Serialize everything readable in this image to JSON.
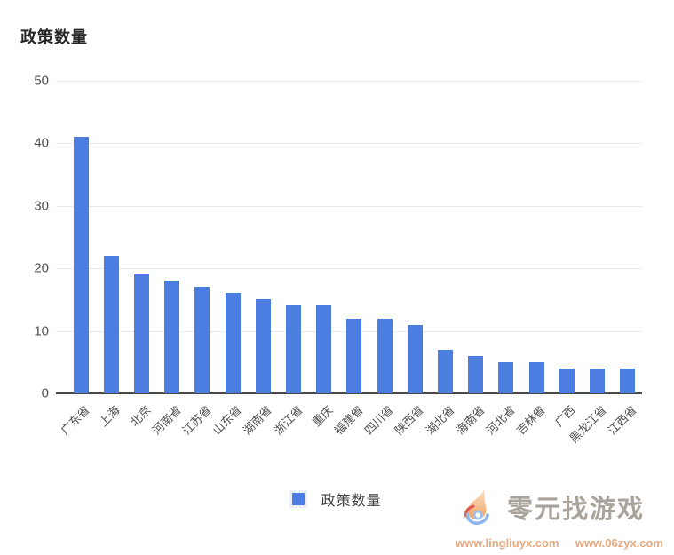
{
  "header": {
    "title": "政策数量"
  },
  "chart_data": {
    "type": "bar",
    "title": "政策数量",
    "categories": [
      "广东省",
      "上海",
      "北京",
      "河南省",
      "江苏省",
      "山东省",
      "湖南省",
      "浙江省",
      "重庆",
      "福建省",
      "四川省",
      "陕西省",
      "湖北省",
      "海南省",
      "河北省",
      "吉林省",
      "广西",
      "黑龙江省",
      "江西省"
    ],
    "values": [
      41,
      22,
      19,
      18,
      17,
      16,
      15,
      14,
      14,
      12,
      12,
      11,
      7,
      6,
      5,
      5,
      4,
      4,
      4
    ],
    "series_name": "政策数量",
    "xlabel": "",
    "ylabel": "",
    "ylim": [
      0,
      50
    ],
    "yticks": [
      0,
      10,
      20,
      30,
      40,
      50
    ],
    "grid": true,
    "legend_position": "bottom",
    "bar_color": "#4C7DE0",
    "gridline_color": "#e9e9e9",
    "axis_color": "#474747",
    "tick_label_color": "#4f4f4f"
  },
  "legend": {
    "label": "政策数量",
    "swatch_color": "#4C7DE0"
  },
  "watermark": {
    "title": "零元找游戏",
    "url1": "www.lingliuyx.com",
    "url2": "www.06zyx.com",
    "title_color": "#a9a39b",
    "url_color": "#e8a87c"
  }
}
